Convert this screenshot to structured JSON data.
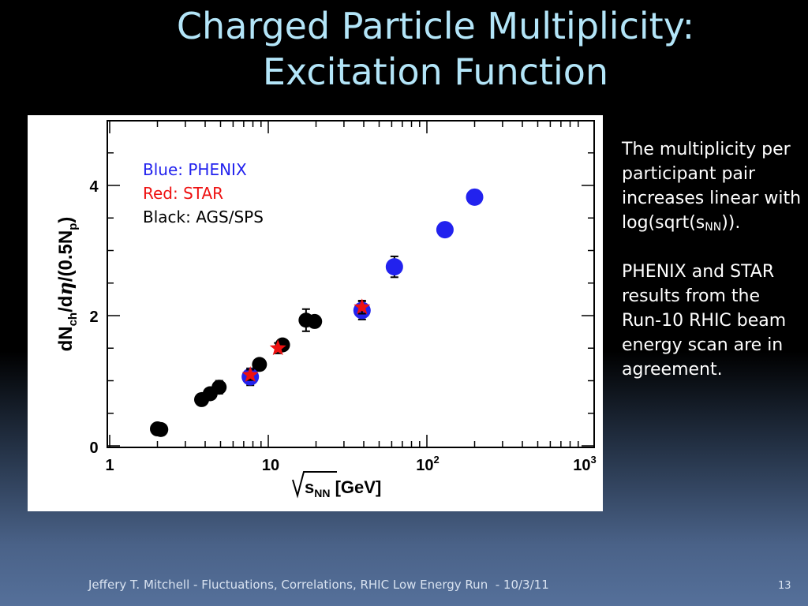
{
  "slide": {
    "title_line1": "Charged Particle Multiplicity:",
    "title_line2": "Excitation Function",
    "footer": "Jeffery T. Mitchell - Fluctuations, Correlations, RHIC Low Energy Run  - 10/3/11",
    "page_number": "13"
  },
  "side_text": {
    "para1_main": "The multiplicity per participant pair increases linear with log(sqrt(s",
    "para1_sub": "NN",
    "para1_tail": ")).",
    "para2": "PHENIX and STAR results from the Run-10 RHIC beam energy scan are in agreement."
  },
  "colors": {
    "phenix": "#2222ee",
    "star": "#ee1111",
    "ags_sps": "#000000",
    "title": "#b3e5f8"
  },
  "chart_data": {
    "type": "scatter",
    "xscale": "log",
    "xlim": [
      1,
      1000
    ],
    "ylim": [
      0,
      5
    ],
    "xlabel": "√sNN [GeV]",
    "ylabel": "dNch/dη/(0.5Np)",
    "xticklabels": [
      "1",
      "10",
      "10^2",
      "10^3"
    ],
    "yticklabels": [
      "0",
      "2",
      "4"
    ],
    "annotations": [
      "Blue: PHENIX",
      "Red: STAR",
      "Black: AGS/SPS"
    ],
    "series": [
      {
        "name": "PHENIX",
        "color": "#2222ee",
        "marker": "circle",
        "points": [
          {
            "x": 7.7,
            "y": 1.06,
            "err": 0.13
          },
          {
            "x": 39,
            "y": 2.08,
            "err": 0.14
          },
          {
            "x": 62.4,
            "y": 2.75,
            "err": 0.16
          },
          {
            "x": 130,
            "y": 3.32,
            "err": 0.07
          },
          {
            "x": 200,
            "y": 3.82,
            "err": 0.08
          }
        ]
      },
      {
        "name": "STAR",
        "color": "#ee1111",
        "marker": "star",
        "points": [
          {
            "x": 7.7,
            "y": 1.09,
            "err": 0.08
          },
          {
            "x": 11.5,
            "y": 1.5,
            "err": 0.08
          },
          {
            "x": 39,
            "y": 2.13,
            "err": 0.1
          }
        ]
      },
      {
        "name": "AGS/SPS",
        "color": "#000000",
        "marker": "circle",
        "points": [
          {
            "x": 2.0,
            "y": 0.26,
            "err": 0.03
          },
          {
            "x": 2.1,
            "y": 0.25,
            "err": 0.03
          },
          {
            "x": 3.8,
            "y": 0.71,
            "err": 0.05
          },
          {
            "x": 4.3,
            "y": 0.8,
            "err": 0.07
          },
          {
            "x": 4.9,
            "y": 0.9,
            "err": 0.1
          },
          {
            "x": 8.8,
            "y": 1.25,
            "err": 0.08
          },
          {
            "x": 12.3,
            "y": 1.55,
            "err": 0.06
          },
          {
            "x": 17.3,
            "y": 1.93,
            "err": 0.17
          },
          {
            "x": 19.6,
            "y": 1.91,
            "err": 0.06
          }
        ]
      }
    ]
  }
}
